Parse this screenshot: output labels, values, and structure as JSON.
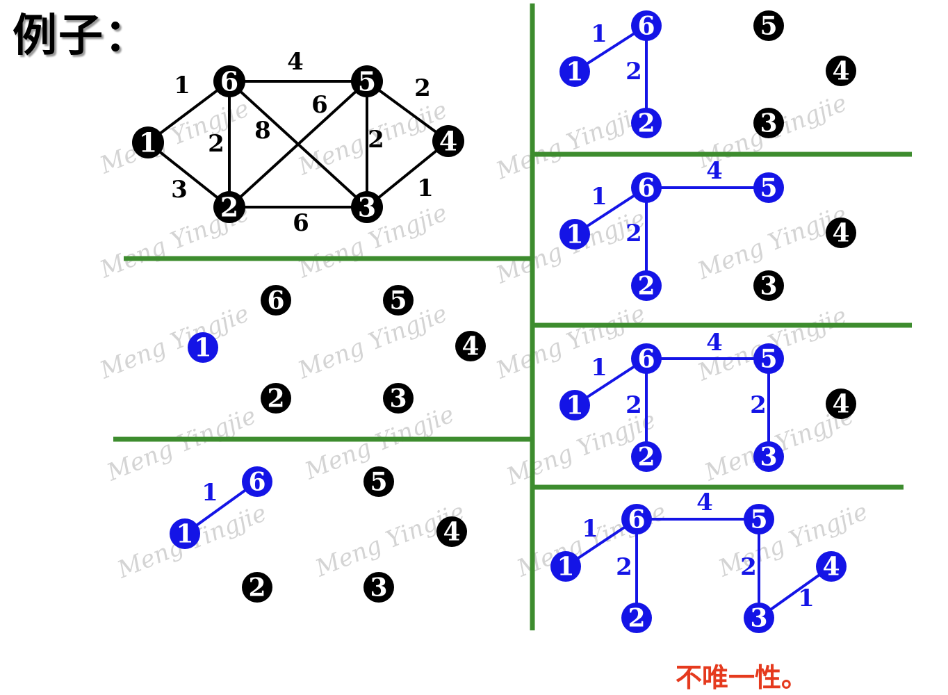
{
  "title": "例子：",
  "conclusion": "不唯一性。",
  "watermark": "Meng Yingjie",
  "colors": {
    "tree": "#1414e6",
    "base": "#000000",
    "divider": "#3d8c2e",
    "conclusion": "#e53a1e"
  },
  "graph": {
    "nodes": [
      "1",
      "2",
      "3",
      "4",
      "5",
      "6"
    ],
    "edges": [
      {
        "from": "1",
        "to": "6",
        "weight": "1"
      },
      {
        "from": "1",
        "to": "2",
        "weight": "3"
      },
      {
        "from": "6",
        "to": "5",
        "weight": "4"
      },
      {
        "from": "6",
        "to": "2",
        "weight": "2"
      },
      {
        "from": "6",
        "to": "3",
        "weight": "8"
      },
      {
        "from": "5",
        "to": "2",
        "weight": "6"
      },
      {
        "from": "5",
        "to": "3",
        "weight": "2"
      },
      {
        "from": "5",
        "to": "4",
        "weight": "2"
      },
      {
        "from": "2",
        "to": "3",
        "weight": "6"
      },
      {
        "from": "3",
        "to": "4",
        "weight": "1"
      }
    ]
  },
  "steps": [
    {
      "step": 1,
      "tree_nodes": [
        "1"
      ],
      "tree_edges": []
    },
    {
      "step": 2,
      "tree_nodes": [
        "1",
        "6"
      ],
      "tree_edges": [
        {
          "from": "1",
          "to": "6",
          "weight": "1"
        }
      ]
    },
    {
      "step": 3,
      "tree_nodes": [
        "1",
        "6",
        "2"
      ],
      "tree_edges": [
        {
          "from": "1",
          "to": "6",
          "weight": "1"
        },
        {
          "from": "6",
          "to": "2",
          "weight": "2"
        }
      ]
    },
    {
      "step": 4,
      "tree_nodes": [
        "1",
        "6",
        "2",
        "5"
      ],
      "tree_edges": [
        {
          "from": "1",
          "to": "6",
          "weight": "1"
        },
        {
          "from": "6",
          "to": "2",
          "weight": "2"
        },
        {
          "from": "6",
          "to": "5",
          "weight": "4"
        }
      ]
    },
    {
      "step": 5,
      "tree_nodes": [
        "1",
        "6",
        "2",
        "5",
        "3"
      ],
      "tree_edges": [
        {
          "from": "1",
          "to": "6",
          "weight": "1"
        },
        {
          "from": "6",
          "to": "2",
          "weight": "2"
        },
        {
          "from": "6",
          "to": "5",
          "weight": "4"
        },
        {
          "from": "5",
          "to": "3",
          "weight": "2"
        }
      ]
    },
    {
      "step": 6,
      "tree_nodes": [
        "1",
        "6",
        "2",
        "5",
        "3",
        "4"
      ],
      "tree_edges": [
        {
          "from": "1",
          "to": "6",
          "weight": "1"
        },
        {
          "from": "6",
          "to": "2",
          "weight": "2"
        },
        {
          "from": "6",
          "to": "5",
          "weight": "4"
        },
        {
          "from": "5",
          "to": "3",
          "weight": "2"
        },
        {
          "from": "3",
          "to": "4",
          "weight": "1"
        }
      ]
    }
  ]
}
